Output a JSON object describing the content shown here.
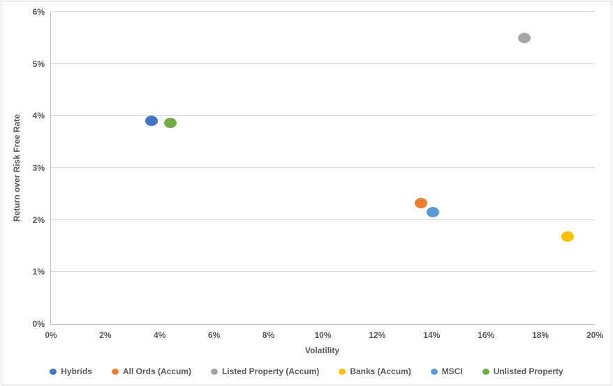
{
  "chart_data": {
    "type": "scatter",
    "title": "",
    "xlabel": "Volatility",
    "ylabel": "Return over Risk Free Rate",
    "xlim": [
      0,
      20
    ],
    "ylim": [
      0,
      6
    ],
    "x_ticks": [
      "0%",
      "2%",
      "4%",
      "6%",
      "8%",
      "10%",
      "12%",
      "14%",
      "16%",
      "18%",
      "20%"
    ],
    "y_ticks": [
      "0%",
      "1%",
      "2%",
      "3%",
      "4%",
      "5%",
      "6%"
    ],
    "grid": "horizontal",
    "legend_position": "bottom",
    "series": [
      {
        "name": "Hybrids",
        "color": "#4472C4",
        "points": [
          {
            "x": 3.7,
            "y": 3.9
          }
        ]
      },
      {
        "name": "All Ords (Accum)",
        "color": "#ED7D31",
        "points": [
          {
            "x": 13.6,
            "y": 2.33
          }
        ]
      },
      {
        "name": "Listed Property (Accum)",
        "color": "#A5A5A5",
        "points": [
          {
            "x": 17.4,
            "y": 5.5
          }
        ]
      },
      {
        "name": "Banks (Accum)",
        "color": "#FFC000",
        "points": [
          {
            "x": 19.0,
            "y": 1.68
          }
        ]
      },
      {
        "name": "MSCI",
        "color": "#5B9BD5",
        "points": [
          {
            "x": 14.05,
            "y": 2.15
          }
        ]
      },
      {
        "name": "Unlisted Property",
        "color": "#70AD47",
        "points": [
          {
            "x": 4.4,
            "y": 3.87
          }
        ]
      }
    ],
    "colors": {
      "tick_text": "#595959",
      "gridline": "#D9D9D9",
      "axis_line": "#BFBFBF"
    }
  }
}
